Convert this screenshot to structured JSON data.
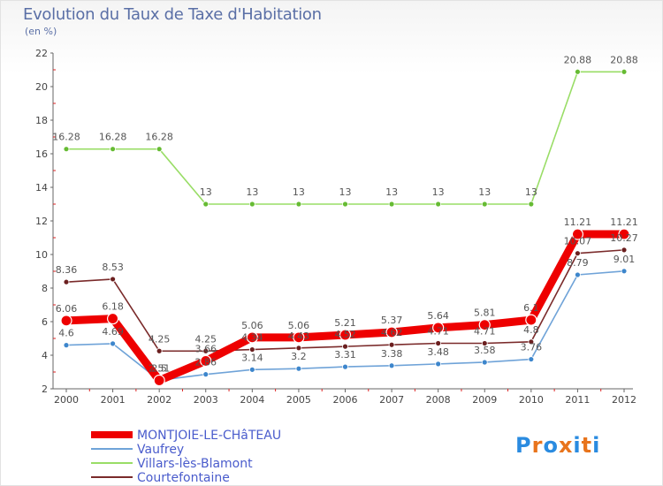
{
  "header": {
    "title": "Evolution du Taux de Taxe d'Habitation",
    "subtitle": "(en %)"
  },
  "logo": {
    "letters": [
      "P",
      "r",
      "o",
      "x",
      "i",
      "t",
      "i"
    ],
    "colors": [
      "#2a8be0",
      "#e8741c",
      "#2a8be0",
      "#e8741c",
      "#2a8be0",
      "#e8741c",
      "#2a8be0"
    ]
  },
  "chart_data": {
    "type": "line",
    "x": [
      2000,
      2001,
      2002,
      2003,
      2004,
      2005,
      2006,
      2007,
      2008,
      2009,
      2010,
      2011,
      2012
    ],
    "ylim": [
      2,
      22
    ],
    "yticks": [
      2,
      4,
      6,
      8,
      10,
      12,
      14,
      16,
      18,
      20,
      22
    ],
    "grid": false,
    "legend_position": "bottom-left",
    "series": [
      {
        "name": "MONTJOIE-LE-CHâTEAU",
        "color": "#ee0000",
        "marker_color": "#ee0000",
        "values": [
          6.06,
          6.18,
          2.5,
          3.66,
          5.06,
          5.06,
          5.21,
          5.37,
          5.64,
          5.81,
          6.1,
          11.21,
          11.21
        ],
        "labels": [
          "6.06",
          "6.18",
          "2.5",
          "3.66",
          "5.06",
          "5.06",
          "5.21",
          "5.37",
          "5.64",
          "5.81",
          "6.1",
          "11.21",
          "11.21"
        ]
      },
      {
        "name": "Vaufrey",
        "color": "#6fa3d8",
        "marker_color": "#3d86cc",
        "values": [
          4.6,
          4.69,
          2.51,
          2.86,
          3.14,
          3.2,
          3.31,
          3.38,
          3.48,
          3.58,
          3.76,
          8.79,
          9.01
        ],
        "labels": [
          "4.6",
          "4.69",
          "2.51",
          "2.86",
          "3.14",
          "3.2",
          "3.31",
          "3.38",
          "3.48",
          "3.58",
          "3.76",
          "8.79",
          "9.01"
        ]
      },
      {
        "name": "Villars-lès-Blamont",
        "color": "#99dd66",
        "marker_color": "#66bb33",
        "values": [
          16.28,
          16.28,
          16.28,
          13,
          13,
          13,
          13,
          13,
          13,
          13,
          13,
          20.88,
          20.88
        ],
        "labels": [
          "16.28",
          "16.28",
          "16.28",
          "13",
          "13",
          "13",
          "13",
          "13",
          "13",
          "13",
          "13",
          "20.88",
          "20.88"
        ]
      },
      {
        "name": "Courtefontaine",
        "color": "#7a2a2a",
        "marker_color": "#6b1f1f",
        "values": [
          8.36,
          8.53,
          4.25,
          4.25,
          4.34,
          4.43,
          4.52,
          4.62,
          4.71,
          4.71,
          4.8,
          10.07,
          10.27
        ],
        "labels": [
          "8.36",
          "8.53",
          "4.25",
          "4.25",
          "4.34",
          "4.43",
          "4.52",
          "4.62",
          "4.71",
          "4.71",
          "4.8",
          "10.07",
          "10.27"
        ]
      }
    ]
  }
}
